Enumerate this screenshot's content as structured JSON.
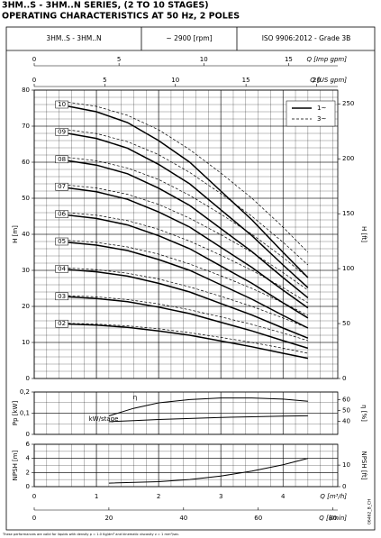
{
  "header": {
    "title_lines": [
      "3HM..S - 3HM..N SERIES, (2 TO 10 STAGES)",
      "OPERATING CHARACTERISTICS AT 50 Hz, 2 POLES"
    ],
    "info": [
      "3HM..S - 3HM..N",
      "~ 2900 [rpm]",
      "ISO 9906:2012 - Grade 3B"
    ],
    "note": "These performances are valid for liquids with density ρ = 1.0 Kg/dm³ and kinematic viscosity ν = 1 mm²/sec.",
    "code": "06462_B_CH"
  },
  "chart_data": [
    {
      "type": "line",
      "ylabel": "H [m]",
      "y2label": "H [ft]",
      "xlim": [
        0,
        4.88
      ],
      "xticks": [
        0,
        1,
        2,
        3,
        4
      ],
      "ylim": [
        0,
        80
      ],
      "yticks": [
        0,
        10,
        20,
        30,
        40,
        50,
        60,
        70,
        80
      ],
      "y2lim": [
        0,
        262.5
      ],
      "y2ticks": [
        0,
        50,
        100,
        150,
        200,
        250
      ],
      "minor_grid": {
        "x": 0.2,
        "y": 2
      },
      "top_axes": [
        {
          "label": "Q [Imp gpm]",
          "lim": [
            0,
            17.9
          ],
          "ticks": [
            0,
            5,
            10,
            15
          ]
        },
        {
          "label": "Q [US gpm]",
          "lim": [
            0,
            21.5
          ],
          "ticks": [
            0,
            5,
            10,
            15,
            20
          ]
        }
      ],
      "legend": [
        {
          "label": "1~",
          "style": "solid"
        },
        {
          "label": "3~",
          "style": "dashed"
        }
      ],
      "x": [
        0.4,
        1,
        1.5,
        2,
        2.5,
        3,
        3.5,
        4,
        4.4
      ],
      "series": [
        {
          "name": "10",
          "color": "#000",
          "values": [
            76,
            74,
            71,
            66,
            60,
            52,
            44,
            35,
            28
          ],
          "values_3": [
            77,
            75.5,
            73,
            69,
            63.5,
            57,
            50,
            42,
            35
          ]
        },
        {
          "name": "09",
          "color": "#000",
          "values": [
            68.4,
            66.6,
            63.9,
            59.4,
            54,
            46.8,
            39.6,
            31.5,
            25.2
          ],
          "values_3": [
            69.3,
            67.95,
            65.7,
            62.1,
            57.15,
            51.3,
            45,
            37.8,
            31.5
          ]
        },
        {
          "name": "08",
          "color": "#000",
          "values": [
            60.8,
            59.2,
            56.8,
            52.8,
            48,
            41.6,
            35.2,
            28,
            22.4
          ],
          "values_3": [
            61.6,
            60.4,
            58.4,
            55.2,
            50.8,
            45.6,
            40,
            33.6,
            28
          ]
        },
        {
          "name": "07",
          "color": "#000",
          "values": [
            53.2,
            51.8,
            49.7,
            46.2,
            42,
            36.4,
            30.8,
            24.5,
            19.6
          ],
          "values_3": [
            53.9,
            52.85,
            51.1,
            48.3,
            44.45,
            39.9,
            35,
            29.4,
            24.5
          ]
        },
        {
          "name": "06",
          "color": "#000",
          "values": [
            45.6,
            44.4,
            42.6,
            39.6,
            36,
            31.2,
            26.4,
            21,
            16.8
          ],
          "values_3": [
            46.2,
            45.3,
            43.8,
            41.4,
            38.1,
            34.2,
            30,
            25.2,
            21
          ]
        },
        {
          "name": "05",
          "color": "#000",
          "values": [
            38,
            37,
            35.5,
            33,
            30,
            26,
            22,
            17.5,
            14
          ],
          "values_3": [
            38.5,
            37.75,
            36.5,
            34.5,
            31.75,
            28.5,
            25,
            21,
            17.5
          ]
        },
        {
          "name": "04",
          "color": "#000",
          "values": [
            30.4,
            29.6,
            28.4,
            26.4,
            24,
            20.8,
            17.6,
            14,
            11.2
          ],
          "values_3": [
            30.8,
            30.2,
            29.2,
            27.6,
            25.4,
            22.8,
            20,
            16.8,
            14
          ]
        },
        {
          "name": "03",
          "color": "#000",
          "values": [
            22.8,
            22.2,
            21.3,
            19.8,
            18,
            15.6,
            13.2,
            10.5,
            8.4
          ],
          "values_3": [
            23.1,
            22.65,
            21.9,
            20.7,
            19.05,
            17.1,
            15,
            12.6,
            10.5
          ]
        },
        {
          "name": "02",
          "color": "#000",
          "values": [
            15.2,
            14.8,
            14.2,
            13.2,
            12,
            10.4,
            8.8,
            7,
            5.6
          ],
          "values_3": [
            15.4,
            15.1,
            14.6,
            13.8,
            12.7,
            11.4,
            10,
            8.4,
            7
          ]
        }
      ]
    },
    {
      "type": "line",
      "ylabel": "Pp [kW]",
      "y2label": "η [%]",
      "xlim": [
        0,
        4.88
      ],
      "xticks": [
        0,
        1,
        2,
        3,
        4
      ],
      "ylim": [
        0,
        0.2
      ],
      "yticks": [
        0,
        {
          "value": 0.1,
          "label": "0,1"
        },
        {
          "value": 0.2,
          "label": "0,2"
        }
      ],
      "y2lim": [
        28,
        67
      ],
      "y2ticks": [
        40,
        50,
        60
      ],
      "minor_grid": {
        "x": 0.2,
        "y": 0.05
      },
      "x": [
        1.2,
        1.6,
        2,
        2.5,
        3,
        3.5,
        4,
        4.4
      ],
      "series": [
        {
          "name": "η",
          "color": "#000",
          "axis": "y2",
          "values": [
            45,
            52,
            57,
            60,
            61.5,
            61.5,
            60.5,
            58.5
          ]
        },
        {
          "name": "kW/stage",
          "color": "#000",
          "values": [
            0.06,
            0.065,
            0.07,
            0.075,
            0.08,
            0.083,
            0.086,
            0.088
          ]
        }
      ]
    },
    {
      "type": "line",
      "ylabel": "NPSH [m]",
      "y2label": "NPSH [ft]",
      "xlim": [
        0,
        4.88
      ],
      "xticks": [
        0,
        1,
        2,
        3,
        4
      ],
      "ylim": [
        0,
        6
      ],
      "yticks": [
        0,
        2,
        4,
        6
      ],
      "y2lim": [
        0,
        19.7
      ],
      "y2ticks": [
        0,
        10
      ],
      "minor_grid": {
        "x": 0.2,
        "y": 1
      },
      "bottom_axes": [
        {
          "label": "Q [m³/h]",
          "lim": [
            0,
            4.88
          ],
          "ticks": [
            0,
            1,
            2,
            3,
            4
          ]
        },
        {
          "label": "Q [l/min]",
          "lim": [
            0,
            81.3
          ],
          "ticks": [
            0,
            20,
            40,
            60,
            80
          ]
        }
      ],
      "x": [
        1.2,
        2,
        2.5,
        3,
        3.5,
        4,
        4.4
      ],
      "series": [
        {
          "name": "NPSH",
          "color": "#000",
          "values": [
            0.5,
            0.7,
            1.0,
            1.5,
            2.2,
            3.1,
            4.0
          ]
        }
      ]
    }
  ]
}
